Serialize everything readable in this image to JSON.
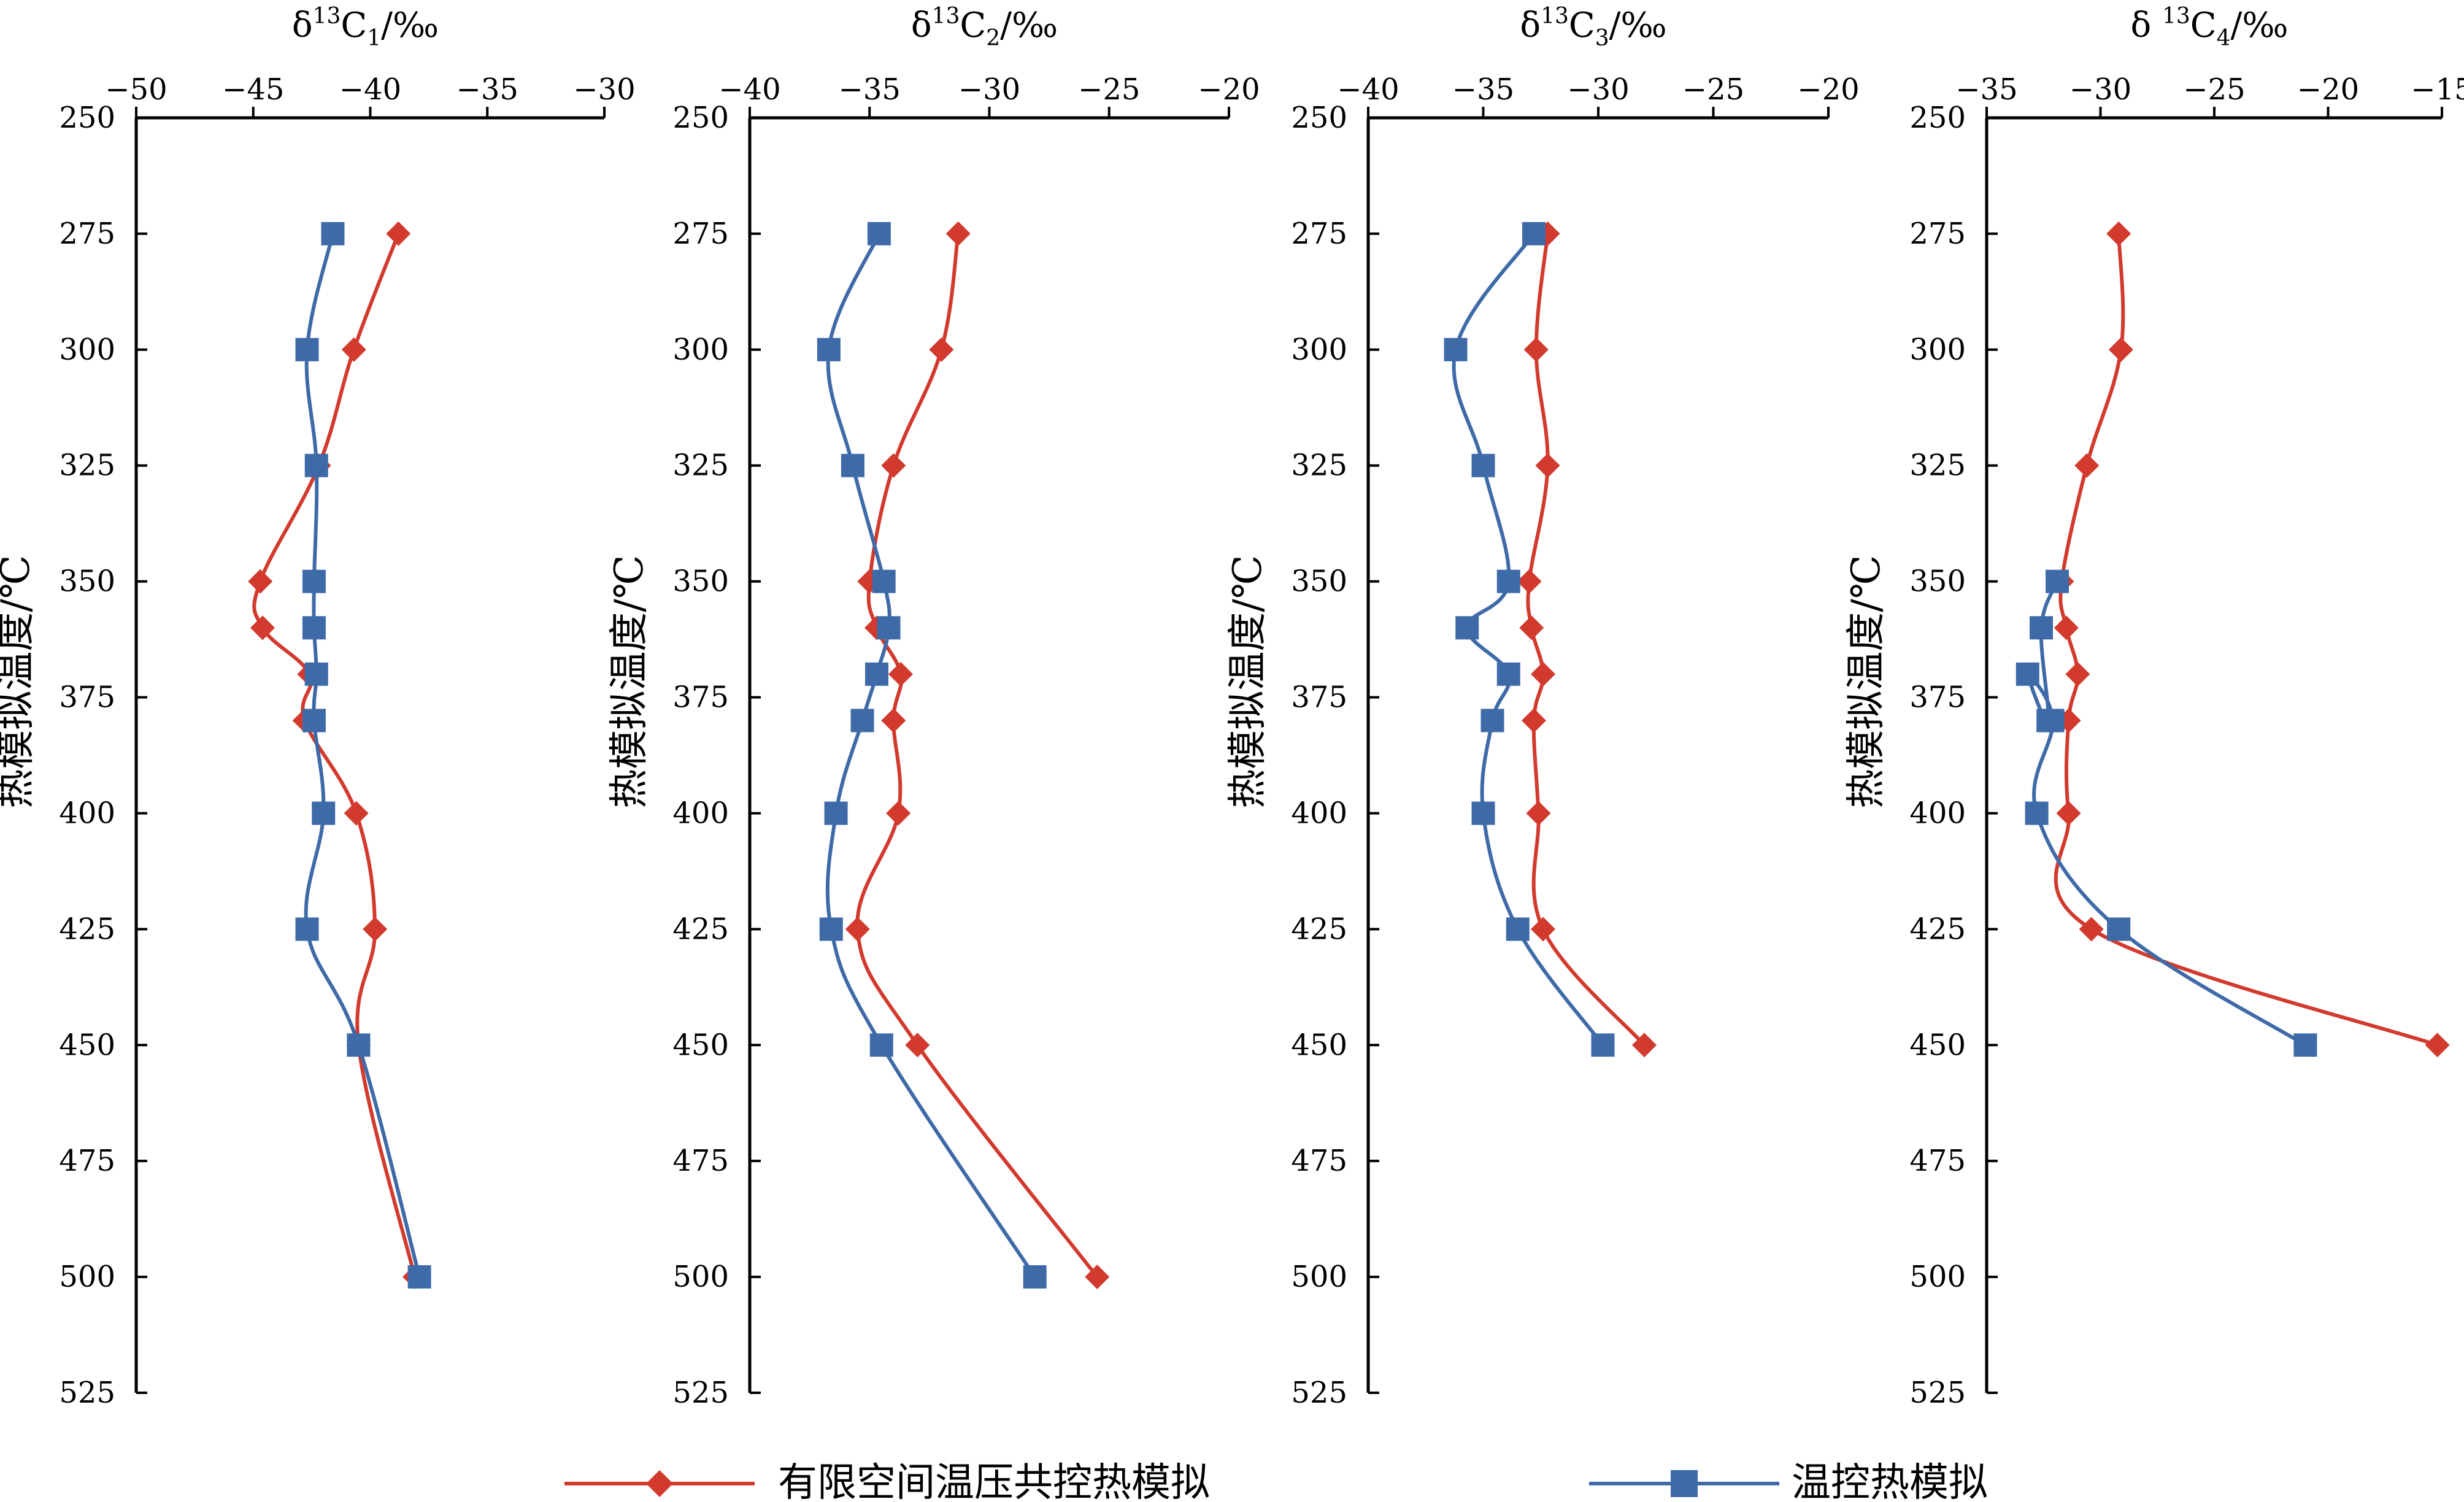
{
  "colors": {
    "series_a": "#d23a2e",
    "series_b": "#3e6aa8",
    "axis": "#000000"
  },
  "legend": {
    "placement": "bottom",
    "items": [
      {
        "label": "有限空间温压共控热模拟",
        "marker": "diamond",
        "color": "#d23a2e"
      },
      {
        "label": "温控热模拟",
        "marker": "square",
        "color": "#3e6aa8"
      }
    ]
  },
  "chart_data": [
    {
      "type": "line",
      "xlabel": {
        "pre": "δ",
        "sup": "13",
        "mid": "C",
        "sub": "1",
        "post": "/‰"
      },
      "ylabel": "热模拟温度/℃",
      "xlim": [
        -50,
        -30
      ],
      "ylim": [
        250,
        525
      ],
      "xticks": [
        "−50",
        "−45",
        "−40",
        "−35",
        "−30"
      ],
      "yticks": [
        "250",
        "275",
        "300",
        "325",
        "350",
        "375",
        "400",
        "425",
        "450",
        "475",
        "500",
        "525"
      ],
      "series": [
        {
          "name": "有限空间温压共控热模拟",
          "x": [
            -38.8,
            -40.7,
            -42.2,
            -44.7,
            -44.6,
            -42.6,
            -42.8,
            -40.6,
            -39.8,
            -40.5,
            -38.1
          ],
          "y": [
            275,
            300,
            325,
            350,
            360,
            370,
            380,
            400,
            425,
            450,
            500
          ]
        },
        {
          "name": "温控热模拟",
          "x": [
            -41.6,
            -42.7,
            -42.3,
            -42.4,
            -42.4,
            -42.3,
            -42.4,
            -42.0,
            -42.7,
            -40.5,
            -37.9
          ],
          "y": [
            275,
            300,
            325,
            350,
            360,
            370,
            380,
            400,
            425,
            450,
            500
          ]
        }
      ]
    },
    {
      "type": "line",
      "xlabel": {
        "pre": "δ",
        "sup": "13",
        "mid": "C",
        "sub": "2",
        "post": "/‰"
      },
      "ylabel": "热模拟温度/℃",
      "xlim": [
        -40,
        -20
      ],
      "ylim": [
        250,
        525
      ],
      "xticks": [
        "−40",
        "−35",
        "−30",
        "−25",
        "−20"
      ],
      "yticks": [
        "250",
        "275",
        "300",
        "325",
        "350",
        "375",
        "400",
        "425",
        "450",
        "475",
        "500",
        "525"
      ],
      "series": [
        {
          "name": "有限空间温压共控热模拟",
          "x": [
            -31.3,
            -32.0,
            -34.0,
            -35.0,
            -34.7,
            -33.7,
            -34.0,
            -33.8,
            -35.5,
            -33.0,
            -25.5
          ],
          "y": [
            275,
            300,
            325,
            350,
            360,
            370,
            380,
            400,
            425,
            450,
            500
          ]
        },
        {
          "name": "温控热模拟",
          "x": [
            -34.6,
            -36.7,
            -35.7,
            -34.4,
            -34.2,
            -34.7,
            -35.3,
            -36.4,
            -36.6,
            -34.5,
            -28.1
          ],
          "y": [
            275,
            300,
            325,
            350,
            360,
            370,
            380,
            400,
            425,
            450,
            500
          ]
        }
      ]
    },
    {
      "type": "line",
      "xlabel": {
        "pre": "δ",
        "sup": "13",
        "mid": "C",
        "sub": "3",
        "post": "/‰"
      },
      "ylabel": "热模拟温度/℃",
      "xlim": [
        -40,
        -20
      ],
      "ylim": [
        250,
        525
      ],
      "xticks": [
        "−40",
        "−35",
        "−30",
        "−25",
        "−20"
      ],
      "yticks": [
        "250",
        "275",
        "300",
        "325",
        "350",
        "375",
        "400",
        "425",
        "450",
        "475",
        "500",
        "525"
      ],
      "series": [
        {
          "name": "有限空间温压共控热模拟",
          "x": [
            -32.2,
            -32.7,
            -32.2,
            -33.0,
            -32.9,
            -32.4,
            -32.8,
            -32.6,
            -32.4,
            -28.0
          ],
          "y": [
            275,
            300,
            325,
            350,
            360,
            370,
            380,
            400,
            425,
            450
          ]
        },
        {
          "name": "温控热模拟",
          "x": [
            -32.8,
            -36.2,
            -35.0,
            -33.9,
            -35.7,
            -33.9,
            -34.6,
            -35.0,
            -33.5,
            -29.8
          ],
          "y": [
            275,
            300,
            325,
            350,
            360,
            370,
            380,
            400,
            425,
            450
          ]
        }
      ]
    },
    {
      "type": "line",
      "xlabel": {
        "pre": "δ  ",
        "sup": "13",
        "mid": "C",
        "sub": "4",
        "post": "/‰"
      },
      "ylabel": "热模拟温度/℃",
      "xlim": [
        -35,
        -15
      ],
      "ylim": [
        250,
        525
      ],
      "xticks": [
        "−35",
        "−30",
        "−25",
        "−20",
        "−15"
      ],
      "yticks": [
        "250",
        "275",
        "300",
        "325",
        "350",
        "375",
        "400",
        "425",
        "450",
        "475",
        "500",
        "525"
      ],
      "series": [
        {
          "name": "有限空间温压共控热模拟",
          "x": [
            -29.2,
            -29.1,
            -30.6,
            -31.7,
            -31.5,
            -31.0,
            -31.4,
            -31.4,
            -30.4,
            -15.2
          ],
          "y": [
            275,
            300,
            325,
            350,
            360,
            370,
            380,
            400,
            425,
            450
          ]
        },
        {
          "name": "温控热模拟",
          "x": [
            -31.9,
            -32.6,
            -32.3,
            -33.2,
            -32.1,
            -32.8,
            -29.2,
            -21.0
          ],
          "y": [
            350,
            360,
            380,
            370,
            380,
            400,
            425,
            450
          ]
        }
      ]
    }
  ]
}
